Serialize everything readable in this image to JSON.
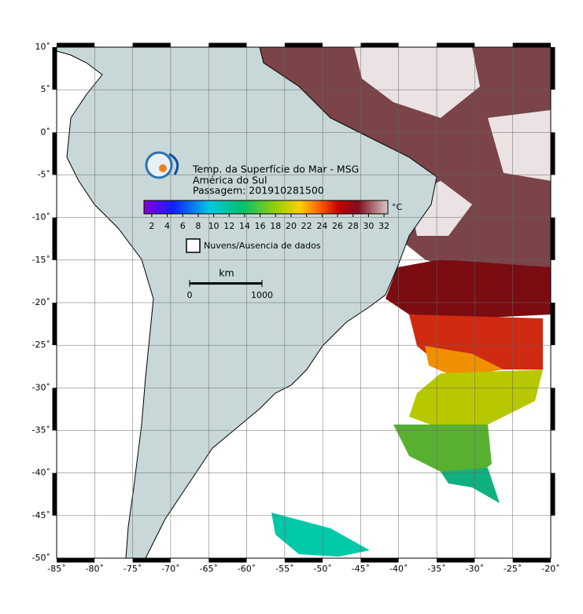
{
  "map": {
    "title": "Temp. da Superfície do Mar - MSG",
    "region": "América do Sul",
    "pass": "Passagem: 201910281500",
    "xlim": [
      -85,
      -20
    ],
    "ylim": [
      -50,
      10
    ],
    "xticks": [
      {
        "value": -85,
        "label": "-85˚"
      },
      {
        "value": -80,
        "label": "-80˚"
      },
      {
        "value": -75,
        "label": "-75˚"
      },
      {
        "value": -70,
        "label": "-70˚"
      },
      {
        "value": -65,
        "label": "-65˚"
      },
      {
        "value": -60,
        "label": "-60˚"
      },
      {
        "value": -55,
        "label": "-55˚"
      },
      {
        "value": -50,
        "label": "-50˚"
      },
      {
        "value": -45,
        "label": "-45˚"
      },
      {
        "value": -40,
        "label": "-40˚"
      },
      {
        "value": -35,
        "label": "-35˚"
      },
      {
        "value": -30,
        "label": "-30˚"
      },
      {
        "value": -25,
        "label": "-25˚"
      },
      {
        "value": -20,
        "label": "-20˚"
      }
    ],
    "yticks": [
      {
        "value": 10,
        "label": "10˚"
      },
      {
        "value": 5,
        "label": "5˚"
      },
      {
        "value": 0,
        "label": "0˚"
      },
      {
        "value": -5,
        "label": "-5˚"
      },
      {
        "value": -10,
        "label": "-10˚"
      },
      {
        "value": -15,
        "label": "-15˚"
      },
      {
        "value": -20,
        "label": "-20˚"
      },
      {
        "value": -25,
        "label": "-25˚"
      },
      {
        "value": -30,
        "label": "-30˚"
      },
      {
        "value": -35,
        "label": "-35˚"
      },
      {
        "value": -40,
        "label": "-40˚"
      },
      {
        "value": -45,
        "label": "-45˚"
      },
      {
        "value": -50,
        "label": "-50˚"
      }
    ],
    "colorbar": {
      "lim": [
        1,
        32.5
      ],
      "ticks": [
        2,
        4,
        6,
        8,
        10,
        12,
        14,
        16,
        18,
        20,
        22,
        24,
        26,
        28,
        30,
        32
      ],
      "unit": "°C"
    },
    "legend": "Nuvens/Ausencia de dados",
    "scale": {
      "unit": "km",
      "ticks": [
        {
          "value": 0,
          "label": "0"
        },
        {
          "value": 1000,
          "label": "1000"
        }
      ]
    }
  }
}
